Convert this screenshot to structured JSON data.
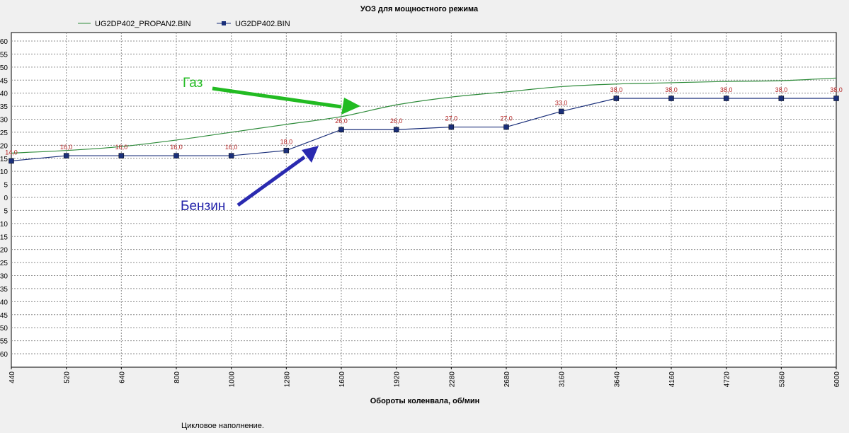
{
  "chart_data": {
    "type": "line",
    "title": "УОЗ для мощностного режима",
    "xlabel": "Обороты коленвала, об/мин",
    "ylabel": "",
    "categories": [
      "440",
      "520",
      "640",
      "800",
      "1000",
      "1280",
      "1600",
      "1920",
      "2280",
      "2680",
      "3160",
      "3640",
      "4160",
      "4720",
      "5360",
      "6000"
    ],
    "ylim": [
      -65,
      65
    ],
    "y_ticks": [
      "60",
      "55",
      "50",
      "45",
      "40",
      "35",
      "30",
      "25",
      "20",
      "15",
      "10",
      "5",
      "0",
      "5",
      "10",
      "15",
      "20",
      "25",
      "30",
      "35",
      "40",
      "45",
      "50",
      "55",
      "60"
    ],
    "grid": true,
    "legend_position": "top-left",
    "series": [
      {
        "name": "UG2DP402_PROPAN2.BIN",
        "color": "#2e8b3a",
        "marker": "none",
        "values": [
          17,
          18,
          19.5,
          22,
          25,
          28,
          31,
          35.5,
          38.5,
          40.5,
          42.5,
          43.5,
          44,
          44.5,
          44.8,
          45.8
        ]
      },
      {
        "name": "UG2DP402.BIN",
        "color": "#1a2f7a",
        "marker": "square",
        "values": [
          14,
          16,
          16,
          16,
          16,
          18,
          26,
          26,
          27,
          27,
          33,
          38,
          38,
          38,
          38,
          38
        ],
        "data_labels": [
          "14,0",
          "16,0",
          "16,0",
          "16,0",
          "16,0",
          "18,0",
          "26,0",
          "26,0",
          "27,0",
          "27,0",
          "33,0",
          "38,0",
          "38,0",
          "38,0",
          "38,0",
          "38,0"
        ]
      }
    ],
    "annotations": [
      {
        "text": "Газ",
        "color": "#22bb22"
      },
      {
        "text": "Бензин",
        "color": "#2222aa"
      }
    ]
  },
  "footer": {
    "text": "Цикловое наполнение."
  },
  "colors": {
    "background": "#f0f0f0",
    "plot_background": "#ffffff",
    "grid": "#8c8c8c",
    "label_red": "#b22222",
    "gas_arrow": "#22bb22",
    "petrol_arrow": "#2a2ab0"
  }
}
